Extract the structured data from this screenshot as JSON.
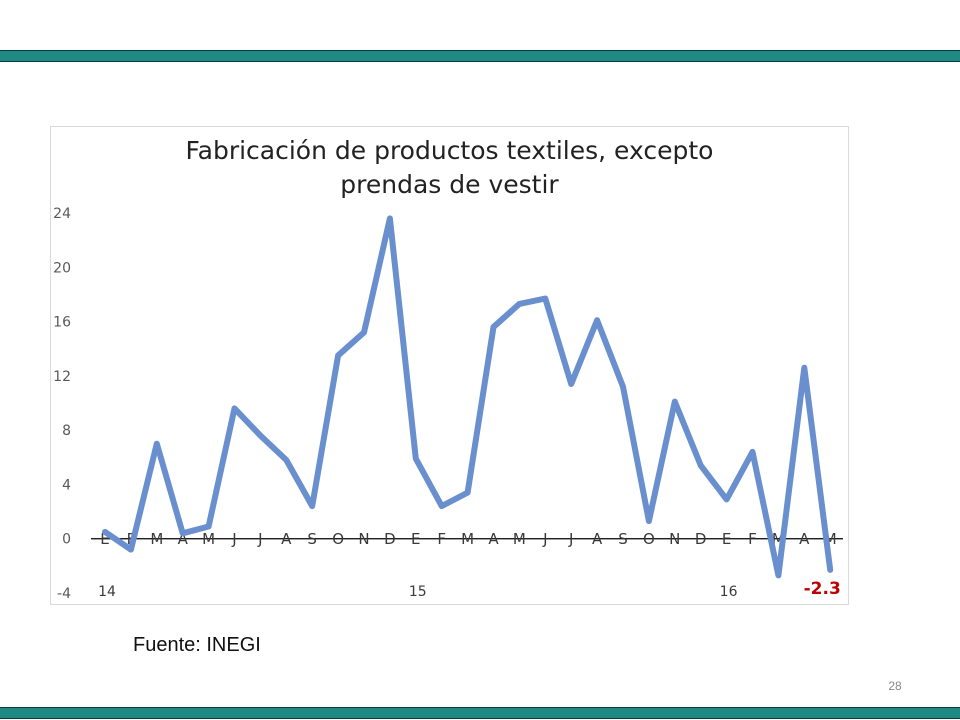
{
  "slide": {
    "source": "Fuente: INEGI",
    "page_number": "28"
  },
  "chart_data": {
    "type": "line",
    "title_lines": [
      "Fabricación de productos textiles, excepto",
      "prendas de vestir"
    ],
    "xlabel": "",
    "ylabel": "",
    "categories": [
      "E",
      "F",
      "M",
      "A",
      "M",
      "J",
      "J",
      "A",
      "S",
      "O",
      "N",
      "D",
      "E",
      "F",
      "M",
      "A",
      "M",
      "J",
      "J",
      "A",
      "S",
      "O",
      "N",
      "D",
      "E",
      "F",
      "M",
      "A",
      "M"
    ],
    "year_labels": [
      {
        "index": 0,
        "label": "14"
      },
      {
        "index": 12,
        "label": "15"
      },
      {
        "index": 24,
        "label": "16"
      }
    ],
    "values": [
      0.5,
      -0.8,
      7.0,
      0.4,
      0.9,
      9.6,
      7.6,
      5.8,
      2.4,
      13.5,
      15.2,
      23.6,
      5.9,
      2.4,
      3.4,
      15.6,
      17.3,
      17.7,
      11.4,
      16.1,
      11.2,
      1.3,
      10.1,
      5.4,
      2.9,
      6.4,
      -2.7,
      12.6,
      -2.3
    ],
    "yticks": [
      -4,
      0,
      4,
      8,
      12,
      16,
      20,
      24
    ],
    "ylim": [
      -4,
      24
    ],
    "last_value_label": "-2.3",
    "colors": {
      "line": "#6a8fce",
      "last_label": "#c00000",
      "axis": "#000000"
    },
    "grid": false,
    "legend": "none"
  }
}
